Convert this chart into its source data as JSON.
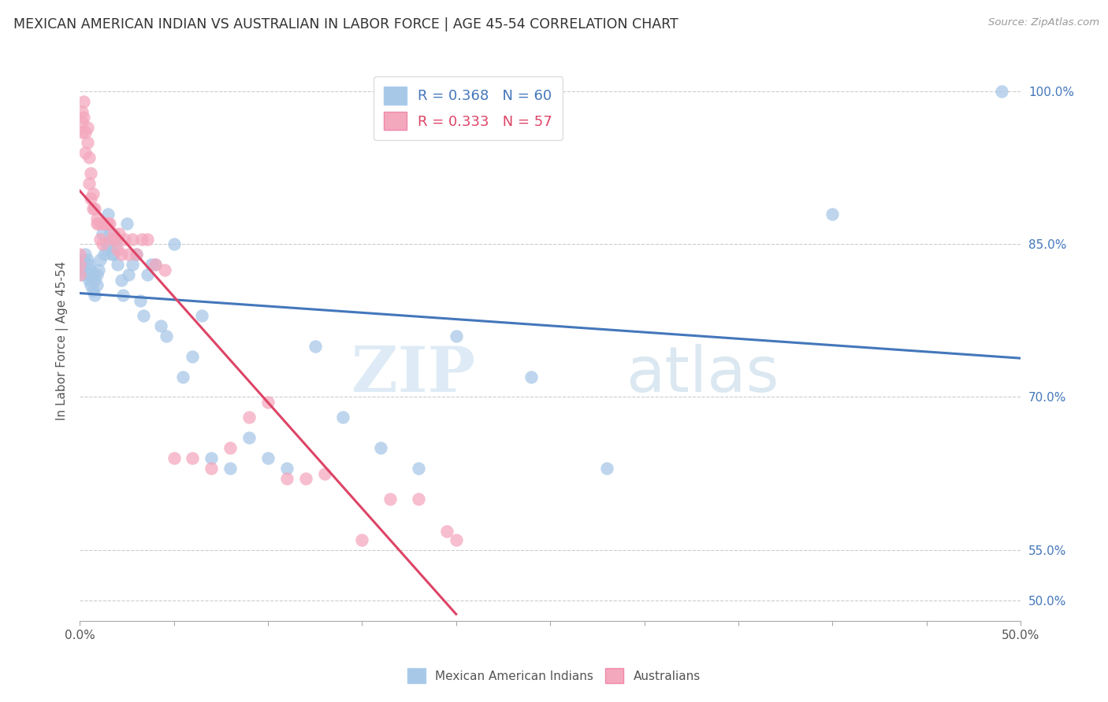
{
  "title": "MEXICAN AMERICAN INDIAN VS AUSTRALIAN IN LABOR FORCE | AGE 45-54 CORRELATION CHART",
  "source": "Source: ZipAtlas.com",
  "ylabel": "In Labor Force | Age 45-54",
  "xmin": 0.0,
  "xmax": 0.5,
  "ymin": 0.48,
  "ymax": 1.03,
  "grid_color": "#cccccc",
  "background_color": "#ffffff",
  "blue_color": "#a8c8e8",
  "pink_color": "#f4a8be",
  "blue_line_color": "#4477bb",
  "pink_line_color": "#dd4466",
  "R_blue": 0.368,
  "N_blue": 60,
  "R_pink": 0.333,
  "N_pink": 57,
  "legend_label_blue": "Mexican American Indians",
  "legend_label_pink": "Australians",
  "watermark_zip": "ZIP",
  "watermark_atlas": "atlas",
  "ytick_pos": [
    0.5,
    0.55,
    0.7,
    0.85,
    1.0
  ],
  "ytick_labels": [
    "50.0%",
    "55.0%",
    "70.0%",
    "85.0%",
    "100.0%"
  ],
  "xtick_pos": [
    0.0,
    0.05,
    0.1,
    0.15,
    0.2,
    0.25,
    0.3,
    0.35,
    0.4,
    0.45,
    0.5
  ],
  "xtick_labels": [
    "0.0%",
    "",
    "",
    "",
    "",
    "",
    "",
    "",
    "",
    "",
    "50.0%"
  ],
  "blue_x": [
    0.001,
    0.001,
    0.002,
    0.002,
    0.003,
    0.004,
    0.004,
    0.005,
    0.005,
    0.006,
    0.006,
    0.007,
    0.007,
    0.008,
    0.008,
    0.009,
    0.009,
    0.01,
    0.011,
    0.012,
    0.013,
    0.014,
    0.015,
    0.015,
    0.016,
    0.017,
    0.018,
    0.019,
    0.02,
    0.022,
    0.023,
    0.025,
    0.026,
    0.028,
    0.03,
    0.032,
    0.034,
    0.036,
    0.038,
    0.04,
    0.043,
    0.046,
    0.05,
    0.055,
    0.06,
    0.065,
    0.07,
    0.08,
    0.09,
    0.1,
    0.11,
    0.125,
    0.14,
    0.16,
    0.18,
    0.2,
    0.24,
    0.28,
    0.4,
    0.49
  ],
  "blue_y": [
    0.83,
    0.82,
    0.835,
    0.825,
    0.84,
    0.835,
    0.82,
    0.83,
    0.815,
    0.825,
    0.81,
    0.82,
    0.805,
    0.815,
    0.8,
    0.82,
    0.81,
    0.825,
    0.835,
    0.86,
    0.84,
    0.845,
    0.85,
    0.88,
    0.86,
    0.84,
    0.84,
    0.85,
    0.83,
    0.815,
    0.8,
    0.87,
    0.82,
    0.83,
    0.84,
    0.795,
    0.78,
    0.82,
    0.83,
    0.83,
    0.77,
    0.76,
    0.85,
    0.72,
    0.74,
    0.78,
    0.64,
    0.63,
    0.66,
    0.64,
    0.63,
    0.75,
    0.68,
    0.65,
    0.63,
    0.76,
    0.72,
    0.63,
    0.88,
    1.0
  ],
  "pink_x": [
    0.0,
    0.0,
    0.0,
    0.001,
    0.001,
    0.001,
    0.002,
    0.002,
    0.003,
    0.003,
    0.004,
    0.004,
    0.005,
    0.005,
    0.006,
    0.006,
    0.007,
    0.007,
    0.008,
    0.009,
    0.009,
    0.01,
    0.011,
    0.012,
    0.012,
    0.013,
    0.014,
    0.015,
    0.016,
    0.017,
    0.018,
    0.019,
    0.02,
    0.021,
    0.022,
    0.024,
    0.026,
    0.028,
    0.03,
    0.033,
    0.036,
    0.04,
    0.045,
    0.05,
    0.06,
    0.07,
    0.08,
    0.09,
    0.1,
    0.11,
    0.12,
    0.13,
    0.15,
    0.165,
    0.18,
    0.195,
    0.2
  ],
  "pink_y": [
    0.84,
    0.83,
    0.82,
    0.98,
    0.97,
    0.96,
    0.975,
    0.99,
    0.96,
    0.94,
    0.965,
    0.95,
    0.935,
    0.91,
    0.92,
    0.895,
    0.9,
    0.885,
    0.885,
    0.875,
    0.87,
    0.87,
    0.855,
    0.87,
    0.85,
    0.87,
    0.87,
    0.87,
    0.87,
    0.855,
    0.86,
    0.855,
    0.845,
    0.86,
    0.84,
    0.855,
    0.84,
    0.855,
    0.84,
    0.855,
    0.855,
    0.83,
    0.825,
    0.64,
    0.64,
    0.63,
    0.65,
    0.68,
    0.695,
    0.62,
    0.62,
    0.625,
    0.56,
    0.6,
    0.6,
    0.568,
    0.56
  ]
}
